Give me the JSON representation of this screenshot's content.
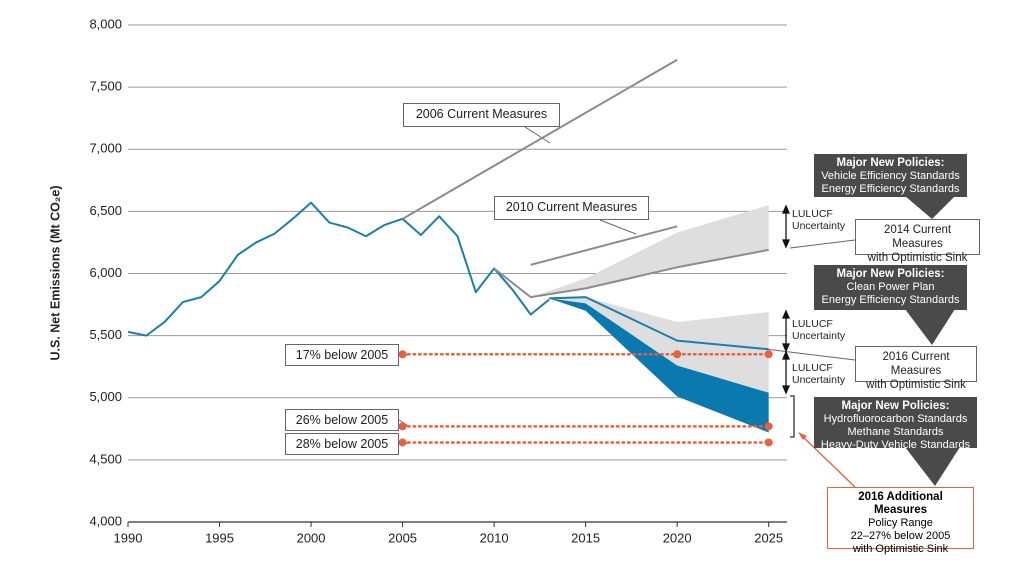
{
  "chart_data": {
    "type": "line",
    "ylabel": "U.S. Net Emissions (Mt CO₂e)",
    "xlim": [
      1990,
      2026
    ],
    "xticks": [
      1990,
      1995,
      2000,
      2005,
      2010,
      2015,
      2020,
      2025
    ],
    "ylim": [
      4000,
      8000
    ],
    "yticks": [
      {
        "value": 4000,
        "label": "4,000"
      },
      {
        "value": 4500,
        "label": "4,500"
      },
      {
        "value": 5000,
        "label": "5,000"
      },
      {
        "value": 5500,
        "label": "5,500"
      },
      {
        "value": 6000,
        "label": "6,000"
      },
      {
        "value": 6500,
        "label": "6,500"
      },
      {
        "value": 7000,
        "label": "7,000"
      },
      {
        "value": 7500,
        "label": "7,500"
      },
      {
        "value": 8000,
        "label": "8,000"
      }
    ],
    "grid": true,
    "series": [
      {
        "color": "#1b7fab",
        "x": [
          1990,
          1991,
          1992,
          1993,
          1994,
          1995,
          1996,
          1997,
          1998,
          1999,
          2000,
          2001,
          2002,
          2003,
          2004,
          2005,
          2006,
          2007,
          2008,
          2009,
          2010,
          2011,
          2012,
          2013
        ],
        "values": [
          5530,
          5500,
          5610,
          5770,
          5810,
          5940,
          6150,
          6250,
          6320,
          6440,
          6570,
          6410,
          6370,
          6300,
          6390,
          6440,
          6310,
          6460,
          6300,
          5850,
          6040,
          5870,
          5670,
          5790
        ]
      },
      {
        "name": "2006 Current Measures",
        "color": "#8c8c8c",
        "x": [
          2005,
          2020
        ],
        "values": [
          6440,
          7720
        ]
      },
      {
        "name": "2010 Current Measures",
        "color": "#8c8c8c",
        "x": [
          2012,
          2020
        ],
        "values": [
          6070,
          6380
        ]
      },
      {
        "name": "2014 Current Measures\nwith Optimistic Sink",
        "color": "#8c8c8c",
        "x": [
          2010,
          2012,
          2015,
          2020,
          2025
        ],
        "values": [
          6040,
          5810,
          5880,
          6050,
          6190
        ]
      },
      {
        "name": "2016 Current Measures\nwith Optimistic Sink",
        "color": "#1b7fab",
        "x": [
          2013,
          2015,
          2020,
          2025
        ],
        "values": [
          5800,
          5810,
          5460,
          5390
        ]
      }
    ],
    "bands": [
      {
        "color": "#dedede",
        "x": [
          2012,
          2015,
          2020,
          2025
        ],
        "upper": [
          5810,
          5960,
          6330,
          6550
        ],
        "lower": [
          5810,
          5880,
          6050,
          6190
        ]
      },
      {
        "color": "#dedede",
        "x": [
          2013,
          2015,
          2020,
          2025
        ],
        "upper": [
          5800,
          5810,
          5610,
          5690
        ],
        "lower": [
          5800,
          5810,
          5460,
          5390
        ]
      },
      {
        "color": "#dedede",
        "x": [
          2013,
          2015,
          2020,
          2025
        ],
        "upper": [
          5800,
          5810,
          5460,
          5390
        ],
        "lower": [
          5800,
          5760,
          5260,
          5040
        ]
      },
      {
        "name": "2016 Additional Measures",
        "note": "Policy Range\n22–27% below 2005\nwith Optimistic Sink",
        "color": "#0a79b0",
        "x": [
          2013,
          2015,
          2020,
          2025
        ],
        "upper": [
          5800,
          5760,
          5260,
          5040
        ],
        "lower": [
          5800,
          5700,
          5010,
          4720
        ]
      }
    ],
    "targets": [
      {
        "label": "17% below 2005",
        "value": 5350,
        "x": [
          2005,
          2020,
          2025
        ]
      },
      {
        "label": "26% below 2005",
        "value": 4770,
        "x": [
          2005,
          2025
        ]
      },
      {
        "label": "28% below 2005",
        "value": 4640,
        "x": [
          2005,
          2025
        ]
      }
    ],
    "target_color": "#e8603c",
    "uncertainty_labels": [
      "LULUCF\nUncertainty",
      "LULUCF\nUncertainty",
      "LULUCF\nUncertainty"
    ],
    "policies": [
      {
        "title": "Major New Policies:",
        "items": "Vehicle Efficiency Standards\nEnergy Efficiency Standards"
      },
      {
        "title": "Major New Policies:",
        "items": "Clean Power Plan\nEnergy Efficiency Standards"
      },
      {
        "title": "Major New Policies:",
        "items": "Hydrofluorocarbon Standards\nMethane Standards\nHeavy-Duty Vehicle Standards"
      }
    ]
  }
}
